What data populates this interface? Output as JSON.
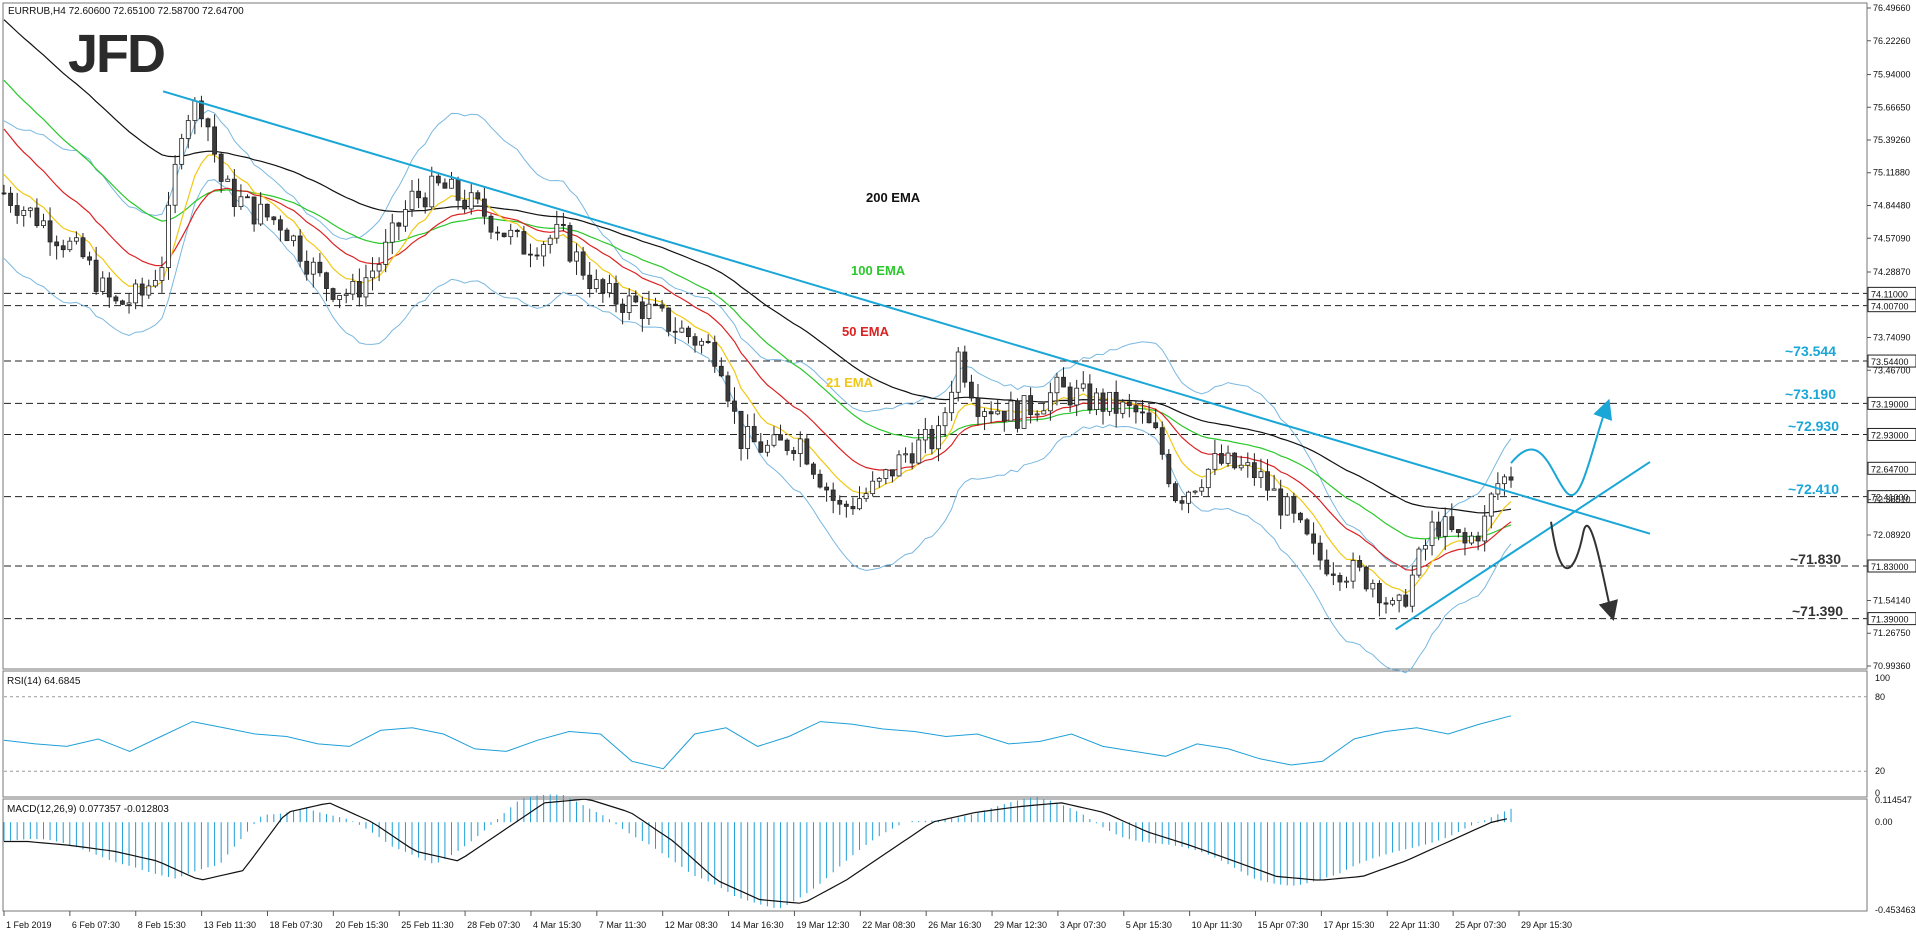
{
  "header": {
    "symbol_line": "EURRUB,H4  72.60600 72.65100 72.58700 72.64700",
    "logo": "JFD"
  },
  "colors": {
    "candle_up": "#ffffff",
    "candle_down": "#3c3c3c",
    "ema21": "#f0c814",
    "ema50": "#dc2222",
    "ema100": "#2ac82a",
    "ema200": "#111111",
    "bands": "#7ab8e0",
    "trend": "#1aa6d6",
    "rsi": "#1e9fd8",
    "macd_hist": "#1e9fd8",
    "macd_signal": "#111111",
    "level_label": "#1aa6d6"
  },
  "chart_data": {
    "type": "candlestick",
    "instrument": "EURRUB",
    "timeframe": "H4",
    "ohlc_last": {
      "open": 72.606,
      "high": 72.651,
      "low": 72.587,
      "close": 72.647
    },
    "price_axis_ticks": [
      "76.49660",
      "76.22260",
      "75.94000",
      "75.66650",
      "75.39260",
      "75.11880",
      "74.84480",
      "74.57090",
      "74.28870",
      "73.74090",
      "73.46700",
      "72.38510",
      "72.08920",
      "71.54140",
      "71.26750",
      "70.99360"
    ],
    "boxed_levels": [
      "74.11000",
      "74.00700",
      "73.54400",
      "73.19000",
      "72.93000",
      "72.64700",
      "72.41000",
      "71.83000",
      "71.39000"
    ],
    "level_annotations": [
      "~73.544",
      "~73.190",
      "~72.930",
      "~72.410",
      "~71.830",
      "~71.390"
    ],
    "ema_labels": [
      "200 EMA",
      "100 EMA",
      "50 EMA",
      "21 EMA"
    ],
    "x_ticks": [
      "1 Feb 2019",
      "6 Feb 07:30",
      "8 Feb 15:30",
      "13 Feb 11:30",
      "18 Feb 07:30",
      "20 Feb 15:30",
      "25 Feb 11:30",
      "28 Feb 07:30",
      "4 Mar 15:30",
      "7 Mar 11:30",
      "12 Mar 08:30",
      "14 Mar 16:30",
      "19 Mar 12:30",
      "22 Mar 08:30",
      "26 Mar 16:30",
      "29 Mar 12:30",
      "3 Apr 07:30",
      "5 Apr 15:30",
      "10 Apr 11:30",
      "15 Apr 07:30",
      "17 Apr 15:30",
      "22 Apr 11:30",
      "25 Apr 07:30",
      "29 Apr 15:30"
    ],
    "price_path": [
      [
        0,
        74.95
      ],
      [
        20,
        74.7
      ],
      [
        40,
        74.4
      ],
      [
        55,
        74.0
      ],
      [
        70,
        74.1
      ],
      [
        80,
        74.4
      ],
      [
        90,
        75.6
      ],
      [
        100,
        75.7
      ],
      [
        110,
        75.0
      ],
      [
        125,
        74.8
      ],
      [
        140,
        74.7
      ],
      [
        160,
        74.2
      ],
      [
        175,
        74.1
      ],
      [
        190,
        74.4
      ],
      [
        205,
        74.9
      ],
      [
        220,
        75.0
      ],
      [
        240,
        74.8
      ],
      [
        260,
        74.5
      ],
      [
        280,
        74.6
      ],
      [
        300,
        74.1
      ],
      [
        320,
        74.0
      ],
      [
        340,
        73.8
      ],
      [
        360,
        73.6
      ],
      [
        370,
        72.9
      ],
      [
        385,
        72.8
      ],
      [
        400,
        72.9
      ],
      [
        420,
        72.3
      ],
      [
        440,
        72.5
      ],
      [
        455,
        72.8
      ],
      [
        470,
        72.9
      ],
      [
        480,
        73.6
      ],
      [
        490,
        73.2
      ],
      [
        510,
        73.1
      ],
      [
        530,
        73.3
      ],
      [
        550,
        73.2
      ],
      [
        570,
        73.1
      ],
      [
        580,
        72.9
      ],
      [
        590,
        72.4
      ],
      [
        610,
        72.7
      ],
      [
        630,
        72.6
      ],
      [
        645,
        72.3
      ],
      [
        660,
        71.9
      ],
      [
        675,
        71.8
      ],
      [
        690,
        71.7
      ],
      [
        700,
        71.4
      ],
      [
        710,
        71.8
      ],
      [
        720,
        72.2
      ],
      [
        735,
        72.0
      ],
      [
        745,
        72.2
      ],
      [
        750,
        72.5
      ],
      [
        758,
        72.6
      ]
    ],
    "indicators": {
      "rsi": {
        "label": "RSI(14) 64.6845",
        "levels": [
          80,
          20
        ],
        "axis_ticks": [
          "100",
          "80",
          "20",
          "0"
        ],
        "last": 64.6845,
        "values": [
          45,
          42,
          40,
          46,
          36,
          48,
          60,
          55,
          50,
          48,
          42,
          40,
          53,
          55,
          50,
          38,
          36,
          45,
          52,
          50,
          28,
          22,
          50,
          55,
          40,
          48,
          60,
          58,
          54,
          52,
          48,
          50,
          42,
          44,
          50,
          40,
          36,
          32,
          42,
          38,
          30,
          25,
          28,
          46,
          52,
          55,
          50,
          58,
          64.7
        ]
      },
      "macd": {
        "label": "MACD(12,26,9) 0.077357 -0.012803",
        "axis_ticks": [
          "0.114547",
          "0.00",
          "-0.453463"
        ],
        "main": 0.077357,
        "signal": -0.012803,
        "signal_values": [
          -0.1,
          -0.12,
          -0.15,
          -0.2,
          -0.3,
          -0.25,
          0.05,
          0.1,
          0.0,
          -0.15,
          -0.2,
          -0.05,
          0.1,
          0.12,
          0.05,
          -0.1,
          -0.3,
          -0.4,
          -0.42,
          -0.3,
          -0.15,
          0.0,
          0.05,
          0.08,
          0.1,
          0.05,
          -0.05,
          -0.12,
          -0.2,
          -0.28,
          -0.3,
          -0.28,
          -0.2,
          -0.1,
          0.0,
          0.05
        ]
      }
    },
    "scenarios": {
      "bullish_target": "~73.190",
      "bearish_target": "~71.390"
    }
  }
}
